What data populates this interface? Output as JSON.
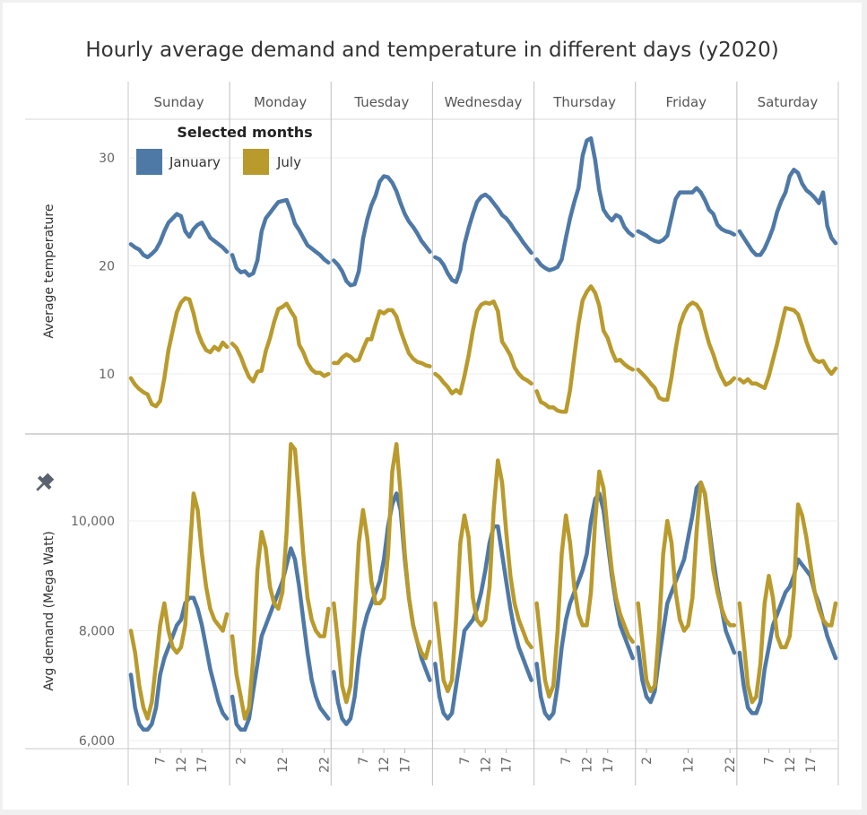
{
  "title": "Hourly average demand and temperature in different days (y2020)",
  "colors": {
    "January": "#4e79a7",
    "July": "#b99a2c",
    "grid": "#ececec",
    "divider": "#c8c8c8"
  },
  "legend": {
    "title": "Selected months",
    "items": [
      {
        "label": "January",
        "color": "#4e79a7"
      },
      {
        "label": "July",
        "color": "#b99a2c"
      }
    ]
  },
  "pin_icon": "pin-icon",
  "chart_data": {
    "type": "line",
    "days": [
      "Sunday",
      "Monday",
      "Tuesday",
      "Wednesday",
      "Thursday",
      "Friday",
      "Saturday"
    ],
    "x": [
      0,
      1,
      2,
      3,
      4,
      5,
      6,
      7,
      8,
      9,
      10,
      11,
      12,
      13,
      14,
      15,
      16,
      17,
      18,
      19,
      20,
      21,
      22,
      23
    ],
    "hour_tick_labels": [
      [
        "7",
        "12",
        "17"
      ],
      [
        "2",
        "12",
        "22"
      ],
      [
        "7",
        "12",
        "17"
      ],
      [
        "7",
        "12",
        "17"
      ],
      [
        "7",
        "12",
        "17"
      ],
      [
        "2",
        "12",
        "22"
      ],
      [
        "7",
        "12",
        "17"
      ]
    ],
    "panels": [
      {
        "ylabel": "Average temperature",
        "ylim": [
          4,
          34
        ],
        "yticks": [
          10,
          20,
          30
        ],
        "ytick_labels": [
          "10",
          "20",
          "30"
        ],
        "series": [
          {
            "name": "January",
            "by_day": [
              [
                22.0,
                21.7,
                21.5,
                21.0,
                20.8,
                21.1,
                21.5,
                22.2,
                23.2,
                24.0,
                24.4,
                24.8,
                24.6,
                23.2,
                22.7,
                23.4,
                23.8,
                24.0,
                23.3,
                22.6,
                22.3,
                22.0,
                21.7,
                21.3
              ],
              [
                21.0,
                19.8,
                19.4,
                19.5,
                19.1,
                19.3,
                20.5,
                23.2,
                24.4,
                24.9,
                25.4,
                25.9,
                26.0,
                26.1,
                25.1,
                23.9,
                23.3,
                22.6,
                21.9,
                21.6,
                21.3,
                21.0,
                20.6,
                20.3
              ],
              [
                20.5,
                20.1,
                19.5,
                18.6,
                18.2,
                18.3,
                19.5,
                22.5,
                24.3,
                25.6,
                26.5,
                27.8,
                28.3,
                28.2,
                27.7,
                26.9,
                25.8,
                24.8,
                24.1,
                23.6,
                23.0,
                22.3,
                21.8,
                21.3
              ],
              [
                20.8,
                20.6,
                20.1,
                19.3,
                18.7,
                18.5,
                19.6,
                22.0,
                23.5,
                24.8,
                25.9,
                26.4,
                26.6,
                26.3,
                25.8,
                25.3,
                24.7,
                24.4,
                23.9,
                23.3,
                22.8,
                22.2,
                21.7,
                21.2
              ],
              [
                20.6,
                20.1,
                19.8,
                19.6,
                19.7,
                19.9,
                20.6,
                22.6,
                24.4,
                25.9,
                27.2,
                30.2,
                31.6,
                31.8,
                29.8,
                27.0,
                25.2,
                24.6,
                24.2,
                24.7,
                24.5,
                23.6,
                23.1,
                22.8
              ],
              [
                23.2,
                23.0,
                22.8,
                22.5,
                22.3,
                22.2,
                22.4,
                22.8,
                24.5,
                26.2,
                26.8,
                26.8,
                26.8,
                26.8,
                27.2,
                26.8,
                26.1,
                25.2,
                24.8,
                23.8,
                23.4,
                23.2,
                23.1,
                22.9
              ],
              [
                23.2,
                22.6,
                22.0,
                21.4,
                21.0,
                21.0,
                21.6,
                22.5,
                23.5,
                25.0,
                26.0,
                26.8,
                28.3,
                28.9,
                28.6,
                27.6,
                27.0,
                26.7,
                26.3,
                25.8,
                26.8,
                23.7,
                22.6,
                22.1
              ]
            ]
          },
          {
            "name": "July",
            "by_day": [
              [
                9.6,
                9.0,
                8.6,
                8.3,
                8.1,
                7.2,
                7.0,
                7.5,
                9.6,
                12.2,
                14.0,
                15.7,
                16.6,
                17.0,
                16.9,
                15.6,
                13.9,
                12.9,
                12.2,
                12.0,
                12.5,
                12.2,
                12.9,
                12.5
              ],
              [
                12.8,
                12.4,
                11.6,
                10.6,
                9.7,
                9.3,
                10.2,
                10.3,
                12.1,
                13.3,
                14.8,
                16.0,
                16.2,
                16.5,
                15.8,
                15.2,
                12.7,
                12.0,
                11.0,
                10.4,
                10.1,
                10.1,
                9.8,
                10.0
              ],
              [
                11.0,
                11.0,
                11.5,
                11.8,
                11.6,
                11.2,
                11.3,
                12.3,
                13.2,
                13.2,
                14.6,
                15.8,
                15.6,
                15.9,
                15.9,
                15.3,
                14.0,
                12.9,
                11.9,
                11.4,
                11.1,
                11.0,
                10.8,
                10.7
              ],
              [
                10.0,
                9.7,
                9.2,
                8.8,
                8.2,
                8.5,
                8.2,
                9.8,
                11.7,
                14.0,
                15.8,
                16.4,
                16.6,
                16.5,
                16.7,
                15.8,
                13.0,
                12.4,
                11.7,
                10.6,
                10.0,
                9.6,
                9.4,
                9.1
              ],
              [
                8.4,
                7.4,
                7.2,
                6.9,
                6.9,
                6.6,
                6.5,
                6.5,
                8.5,
                11.6,
                14.6,
                16.8,
                17.6,
                18.1,
                17.5,
                16.3,
                14.0,
                13.3,
                12.1,
                11.2,
                11.3,
                10.9,
                10.6,
                10.4
              ],
              [
                10.4,
                10.0,
                9.6,
                9.1,
                8.7,
                7.8,
                7.6,
                7.6,
                9.7,
                12.3,
                14.5,
                15.6,
                16.3,
                16.6,
                16.4,
                15.8,
                14.2,
                12.8,
                11.8,
                10.6,
                9.7,
                9.0,
                9.2,
                9.6
              ],
              [
                9.5,
                9.2,
                9.5,
                9.1,
                9.1,
                8.9,
                8.7,
                9.8,
                11.3,
                12.8,
                14.5,
                16.1,
                16.0,
                15.9,
                15.5,
                14.4,
                13.0,
                12.0,
                11.3,
                11.1,
                11.2,
                10.5,
                10.0,
                10.5
              ]
            ]
          }
        ]
      },
      {
        "ylabel": "Avg demand (Mega Watt)",
        "ylim": [
          5800,
          11500
        ],
        "yticks": [
          6000,
          8000,
          10000
        ],
        "ytick_labels": [
          "6,000",
          "8,000",
          "10,000"
        ],
        "series": [
          {
            "name": "January",
            "by_day": [
              [
                7200,
                6600,
                6300,
                6200,
                6200,
                6300,
                6600,
                7200,
                7500,
                7700,
                7900,
                8100,
                8200,
                8500,
                8600,
                8600,
                8400,
                8100,
                7700,
                7300,
                7000,
                6700,
                6500,
                6400
              ],
              [
                6800,
                6300,
                6200,
                6200,
                6400,
                6900,
                7400,
                7900,
                8100,
                8300,
                8500,
                8700,
                8900,
                9200,
                9500,
                9300,
                8800,
                8200,
                7600,
                7100,
                6800,
                6600,
                6500,
                6400
              ],
              [
                7250,
                6700,
                6400,
                6300,
                6400,
                6800,
                7500,
                8000,
                8300,
                8500,
                8700,
                8900,
                9300,
                9900,
                10300,
                10500,
                10200,
                9300,
                8600,
                8100,
                7800,
                7500,
                7300,
                7100
              ],
              [
                7400,
                6800,
                6500,
                6400,
                6500,
                7000,
                7500,
                8000,
                8100,
                8200,
                8400,
                8700,
                9100,
                9600,
                9900,
                9900,
                9400,
                8900,
                8400,
                8000,
                7700,
                7500,
                7300,
                7100
              ],
              [
                7400,
                6800,
                6500,
                6400,
                6500,
                7000,
                7700,
                8200,
                8500,
                8700,
                8900,
                9100,
                9400,
                10000,
                10400,
                10500,
                10200,
                9600,
                9000,
                8500,
                8100,
                7900,
                7700,
                7500
              ],
              [
                7700,
                7100,
                6800,
                6700,
                6900,
                7500,
                8000,
                8500,
                8700,
                8900,
                9100,
                9300,
                9700,
                10100,
                10600,
                10700,
                10500,
                9900,
                9300,
                8800,
                8400,
                8000,
                7800,
                7600
              ],
              [
                7600,
                7000,
                6600,
                6500,
                6500,
                6700,
                7300,
                7700,
                8100,
                8300,
                8500,
                8700,
                8800,
                9000,
                9300,
                9200,
                9100,
                9000,
                8700,
                8500,
                8200,
                7900,
                7700,
                7500
              ]
            ]
          },
          {
            "name": "July",
            "by_day": [
              [
                8000,
                7600,
                7000,
                6600,
                6400,
                6700,
                7400,
                8100,
                8500,
                8000,
                7700,
                7600,
                7700,
                8100,
                9300,
                10500,
                10200,
                9400,
                8800,
                8400,
                8200,
                8100,
                8000,
                8300
              ],
              [
                7900,
                7200,
                6800,
                6400,
                6600,
                7500,
                9100,
                9800,
                9500,
                8800,
                8500,
                8400,
                8700,
                9800,
                11400,
                11300,
                10400,
                9400,
                8600,
                8200,
                8000,
                7900,
                7900,
                8400
              ],
              [
                8500,
                7800,
                7000,
                6700,
                7000,
                8200,
                9600,
                10200,
                9700,
                8900,
                8500,
                8500,
                8600,
                9400,
                10900,
                11400,
                10500,
                9400,
                8600,
                8100,
                7800,
                7600,
                7500,
                7800
              ],
              [
                8500,
                7800,
                7100,
                6900,
                7100,
                8200,
                9600,
                10100,
                9700,
                8600,
                8200,
                8100,
                8200,
                8800,
                10200,
                11100,
                10700,
                9800,
                9000,
                8500,
                8200,
                8000,
                7800,
                7700
              ],
              [
                8500,
                7800,
                7100,
                6800,
                7000,
                8000,
                9400,
                10100,
                9600,
                8800,
                8300,
                8100,
                8100,
                8700,
                10000,
                10900,
                10600,
                9800,
                9100,
                8600,
                8300,
                8100,
                7900,
                7800
              ],
              [
                8500,
                7800,
                7100,
                6900,
                7000,
                8000,
                9400,
                10000,
                9600,
                8700,
                8200,
                8000,
                8100,
                8600,
                9800,
                10700,
                10500,
                9800,
                9100,
                8700,
                8400,
                8200,
                8100,
                8100
              ],
              [
                8500,
                7800,
                7000,
                6700,
                6800,
                7400,
                8500,
                9000,
                8600,
                7900,
                7700,
                7700,
                7900,
                8700,
                10300,
                10100,
                9700,
                9200,
                8700,
                8400,
                8200,
                8100,
                8100,
                8500
              ]
            ]
          }
        ]
      }
    ]
  }
}
